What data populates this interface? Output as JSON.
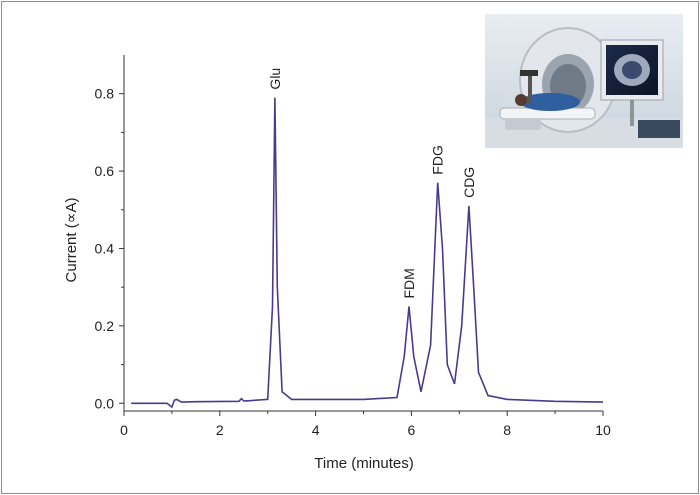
{
  "chart_data": {
    "type": "line",
    "xlabel": "Time (minutes)",
    "ylabel": "Current (∝A)",
    "xlim": [
      0,
      10
    ],
    "ylim": [
      -0.02,
      0.9
    ],
    "x_ticks": [
      "0",
      "2",
      "4",
      "6",
      "8",
      "10"
    ],
    "y_ticks": [
      "0.0",
      "0.2",
      "0.4",
      "0.6",
      "0.8"
    ],
    "grid": false,
    "line_color": "#4b3a8c",
    "series": [
      {
        "x": [
          0.15,
          0.9,
          1.0,
          1.05,
          1.1,
          1.2,
          1.5,
          2.4,
          2.45,
          2.5,
          2.55,
          3.0,
          3.1,
          3.15,
          3.2,
          3.3,
          3.5,
          4.0,
          5.0,
          5.7,
          5.85,
          5.95,
          6.05,
          6.2,
          6.4,
          6.55,
          6.65,
          6.75,
          6.9,
          7.05,
          7.2,
          7.3,
          7.4,
          7.6,
          8.0,
          9.0,
          10.0
        ],
        "y": [
          0.0,
          0.0,
          -0.01,
          0.008,
          0.01,
          0.003,
          0.004,
          0.005,
          0.012,
          0.006,
          0.006,
          0.01,
          0.25,
          0.79,
          0.3,
          0.03,
          0.01,
          0.01,
          0.01,
          0.015,
          0.12,
          0.25,
          0.12,
          0.03,
          0.15,
          0.57,
          0.4,
          0.1,
          0.05,
          0.2,
          0.51,
          0.3,
          0.08,
          0.02,
          0.01,
          0.005,
          0.003
        ]
      }
    ],
    "annotations": [
      {
        "text": "Glu",
        "x": 3.15,
        "y": 0.79
      },
      {
        "text": "FDM",
        "x": 5.95,
        "y": 0.25
      },
      {
        "text": "FDG",
        "x": 6.55,
        "y": 0.57
      },
      {
        "text": "CDG",
        "x": 7.2,
        "y": 0.51
      }
    ],
    "inset_image": "ct-scanner-photo"
  }
}
